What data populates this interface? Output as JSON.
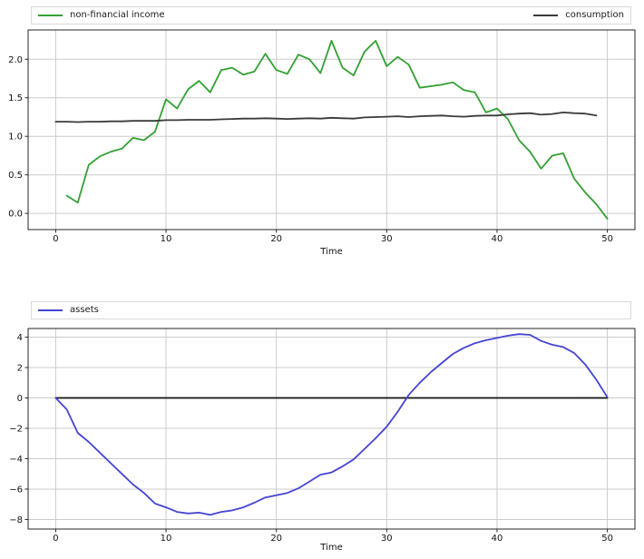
{
  "figure": {
    "background": "#ffffff",
    "grid_color": "#cccccc",
    "spine_color": "#262626",
    "tick_color": "#262626",
    "text_color": "#111111",
    "legend_border_color": "#d9d9d9"
  },
  "chart_data": [
    {
      "name": "income-consumption",
      "type": "line",
      "title": "",
      "xlabel": "Time",
      "ylabel": "",
      "grid": true,
      "legend_position": "above-expand",
      "xlim": [
        -2.5,
        52.5
      ],
      "ylim": [
        -0.21,
        2.38
      ],
      "xticks": [
        0,
        10,
        20,
        30,
        40,
        50
      ],
      "xtick_labels": [
        "0",
        "10",
        "20",
        "30",
        "40",
        "50"
      ],
      "yticks": [
        0.0,
        0.5,
        1.0,
        1.5,
        2.0
      ],
      "ytick_labels": [
        "0.0",
        "0.5",
        "1.0",
        "1.5",
        "2.0"
      ],
      "legend": {
        "items": [
          {
            "label": "non-financial income",
            "series": 0
          },
          {
            "label": "consumption",
            "series": 1
          }
        ]
      },
      "series": [
        {
          "name": "non-financial income",
          "color": "#33a033",
          "lw": 1.8,
          "x0": 1,
          "y": [
            0.23,
            0.14,
            0.63,
            0.74,
            0.8,
            0.84,
            0.98,
            0.95,
            1.06,
            1.48,
            1.36,
            1.61,
            1.72,
            1.57,
            1.86,
            1.89,
            1.8,
            1.84,
            2.07,
            1.86,
            1.81,
            2.06,
            2.0,
            1.82,
            2.24,
            1.89,
            1.79,
            2.1,
            2.24,
            1.91,
            2.03,
            1.93,
            1.63,
            1.65,
            1.67,
            1.7,
            1.6,
            1.57,
            1.31,
            1.36,
            1.22,
            0.95,
            0.8,
            0.58,
            0.75,
            0.78,
            0.45,
            0.27,
            0.12,
            -0.07
          ]
        },
        {
          "name": "consumption",
          "color": "#3a3a3a",
          "lw": 1.8,
          "x0": 0,
          "y": [
            1.19,
            1.19,
            1.185,
            1.19,
            1.19,
            1.195,
            1.195,
            1.2,
            1.2,
            1.2,
            1.21,
            1.21,
            1.215,
            1.215,
            1.215,
            1.22,
            1.225,
            1.23,
            1.23,
            1.235,
            1.23,
            1.225,
            1.23,
            1.235,
            1.23,
            1.24,
            1.235,
            1.23,
            1.245,
            1.25,
            1.255,
            1.26,
            1.25,
            1.26,
            1.265,
            1.27,
            1.26,
            1.255,
            1.265,
            1.27,
            1.27,
            1.285,
            1.295,
            1.3,
            1.28,
            1.29,
            1.31,
            1.3,
            1.295,
            1.27
          ]
        }
      ]
    },
    {
      "name": "assets",
      "type": "line",
      "title": "",
      "xlabel": "Time",
      "ylabel": "",
      "grid": true,
      "legend_position": "above-expand",
      "xlim": [
        -2.5,
        52.5
      ],
      "ylim": [
        -8.63,
        4.57
      ],
      "xticks": [
        0,
        10,
        20,
        30,
        40,
        50
      ],
      "xtick_labels": [
        "0",
        "10",
        "20",
        "30",
        "40",
        "50"
      ],
      "yticks": [
        -8,
        -6,
        -4,
        -2,
        0,
        2,
        4
      ],
      "ytick_labels": [
        "−8",
        "−6",
        "−4",
        "−2",
        "0",
        "2",
        "4"
      ],
      "legend": {
        "items": [
          {
            "label": "assets",
            "series": 1
          }
        ]
      },
      "series": [
        {
          "name": "zero-line",
          "color": "#111111",
          "lw": 1.8,
          "x": [
            0,
            50
          ],
          "y": [
            0,
            0
          ]
        },
        {
          "name": "assets",
          "color": "#4444d3",
          "lw": 1.8,
          "x0": 0,
          "y": [
            0.0,
            -0.75,
            -2.3,
            -2.9,
            -3.6,
            -4.3,
            -5.0,
            -5.7,
            -6.25,
            -6.95,
            -7.2,
            -7.5,
            -7.6,
            -7.55,
            -7.7,
            -7.5,
            -7.4,
            -7.2,
            -6.9,
            -6.55,
            -6.4,
            -6.25,
            -5.95,
            -5.5,
            -5.05,
            -4.9,
            -4.5,
            -4.05,
            -3.35,
            -2.65,
            -1.9,
            -0.9,
            0.2,
            1.0,
            1.7,
            2.3,
            2.9,
            3.3,
            3.6,
            3.8,
            3.95,
            4.1,
            4.2,
            4.15,
            3.75,
            3.5,
            3.35,
            2.95,
            2.2,
            1.2,
            0.05
          ]
        }
      ]
    }
  ]
}
